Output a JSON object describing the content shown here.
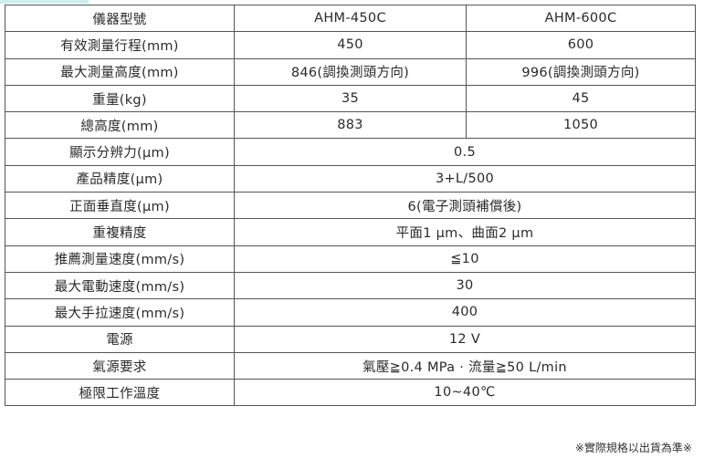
{
  "accent_color": "#cdeeee",
  "header": {
    "label": "儀器型號",
    "models": [
      "AHM-450C",
      "AHM-600C"
    ]
  },
  "split_rows": [
    {
      "label": "有效測量行程(mm)",
      "values": [
        "450",
        "600"
      ]
    },
    {
      "label": "最大測量高度(mm)",
      "values": [
        "846(調換測頭方向)",
        "996(調換測頭方向)"
      ]
    },
    {
      "label": "重量(kg)",
      "values": [
        "35",
        "45"
      ]
    },
    {
      "label": "總高度(mm)",
      "values": [
        "883",
        "1050"
      ]
    }
  ],
  "shared_rows": [
    {
      "label": "顯示分辨力(µm)",
      "value": "0.5"
    },
    {
      "label": "產品精度(µm)",
      "value": "3+L/500"
    },
    {
      "label": "正面垂直度(µm)",
      "value": "6(電子測頭補償後)"
    },
    {
      "label": "重複精度",
      "value": "平面1 µm、曲面2 µm"
    },
    {
      "label": "推薦測量速度(mm/s)",
      "value": "≦10"
    },
    {
      "label": "最大電動速度(mm/s)",
      "value": "30"
    },
    {
      "label": "最大手拉速度(mm/s)",
      "value": "400"
    },
    {
      "label": "電源",
      "value": "12 V"
    },
    {
      "label": "氣源要求",
      "value": "氣壓≧0.4 MPa · 流量≧50 L/min"
    },
    {
      "label": "極限工作溫度",
      "value": "10~40℃"
    }
  ],
  "footnote": "※實際規格以出貨為準※"
}
